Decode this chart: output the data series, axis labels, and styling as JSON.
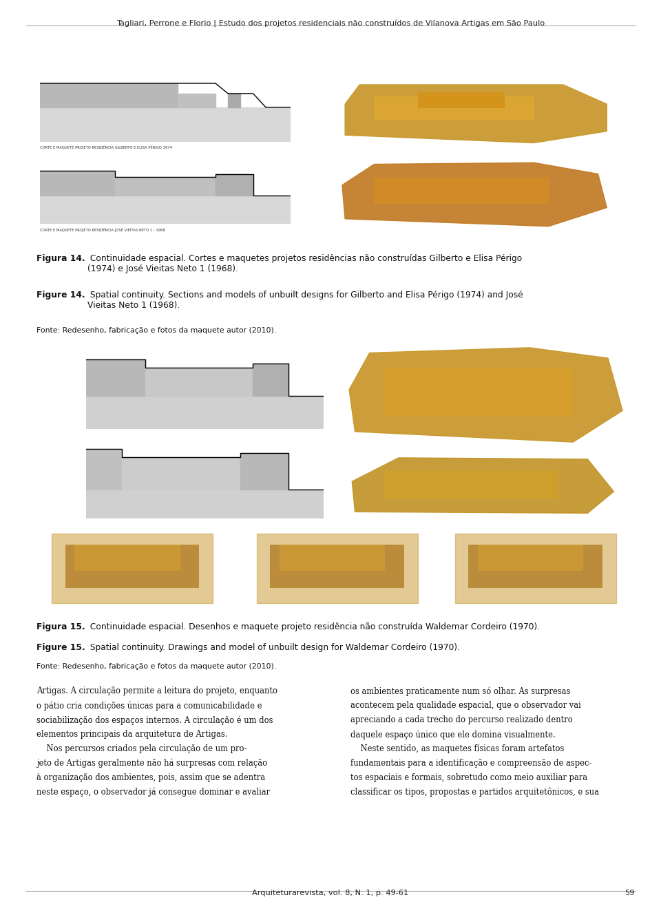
{
  "header_text": "Tagliari, Perrone e Florio | Estudo dos projetos residenciais não construídos de Vilanova Artigas em São Paulo",
  "footer_text": "Arquiteturarevista, vol. 8, N. 1, p. 49-61",
  "footer_page": "59",
  "background_color": "#ffffff",
  "header_line_color": "#aaaaaa",
  "footer_line_color": "#aaaaaa",
  "fig14_source": "Fonte: Redesenho, fabricação e fotos da maquete autor (2010).",
  "fig15_source": "Fonte: Redesenho, fabricação e fotos da maquete autor (2010).",
  "body_col1_lines": [
    "Artigas. A circulação permite a leitura do projeto, enquanto",
    "o pátio cria condições únicas para a comunicabilidade e",
    "sociabilização dos espaços internos. A circulação é um dos",
    "elementos principais da arquitetura de Artigas.",
    "    Nos percursos criados pela circulação de um pro-",
    "jeto de Artigas geralmente não há surpresas com relação",
    "à organização dos ambientes, pois, assim que se adentra",
    "neste espaço, o observador já consegue dominar e avaliar"
  ],
  "body_col2_lines": [
    "os ambientes praticamente num só olhar. As surpresas",
    "acontecem pela qualidade espacial, que o observador vai",
    "apreciando a cada trecho do percurso realizado dentro",
    "daquele espaço único que ele domina visualmente.",
    "    Neste sentido, as maquetes físicas foram artefatos",
    "fundamentais para a identificação e compreensão de aspec-",
    "tos espaciais e formais, sobretudo como meio auxiliar para",
    "classificar os tipos, propostas e partidos arquitetônicos, e sua"
  ]
}
